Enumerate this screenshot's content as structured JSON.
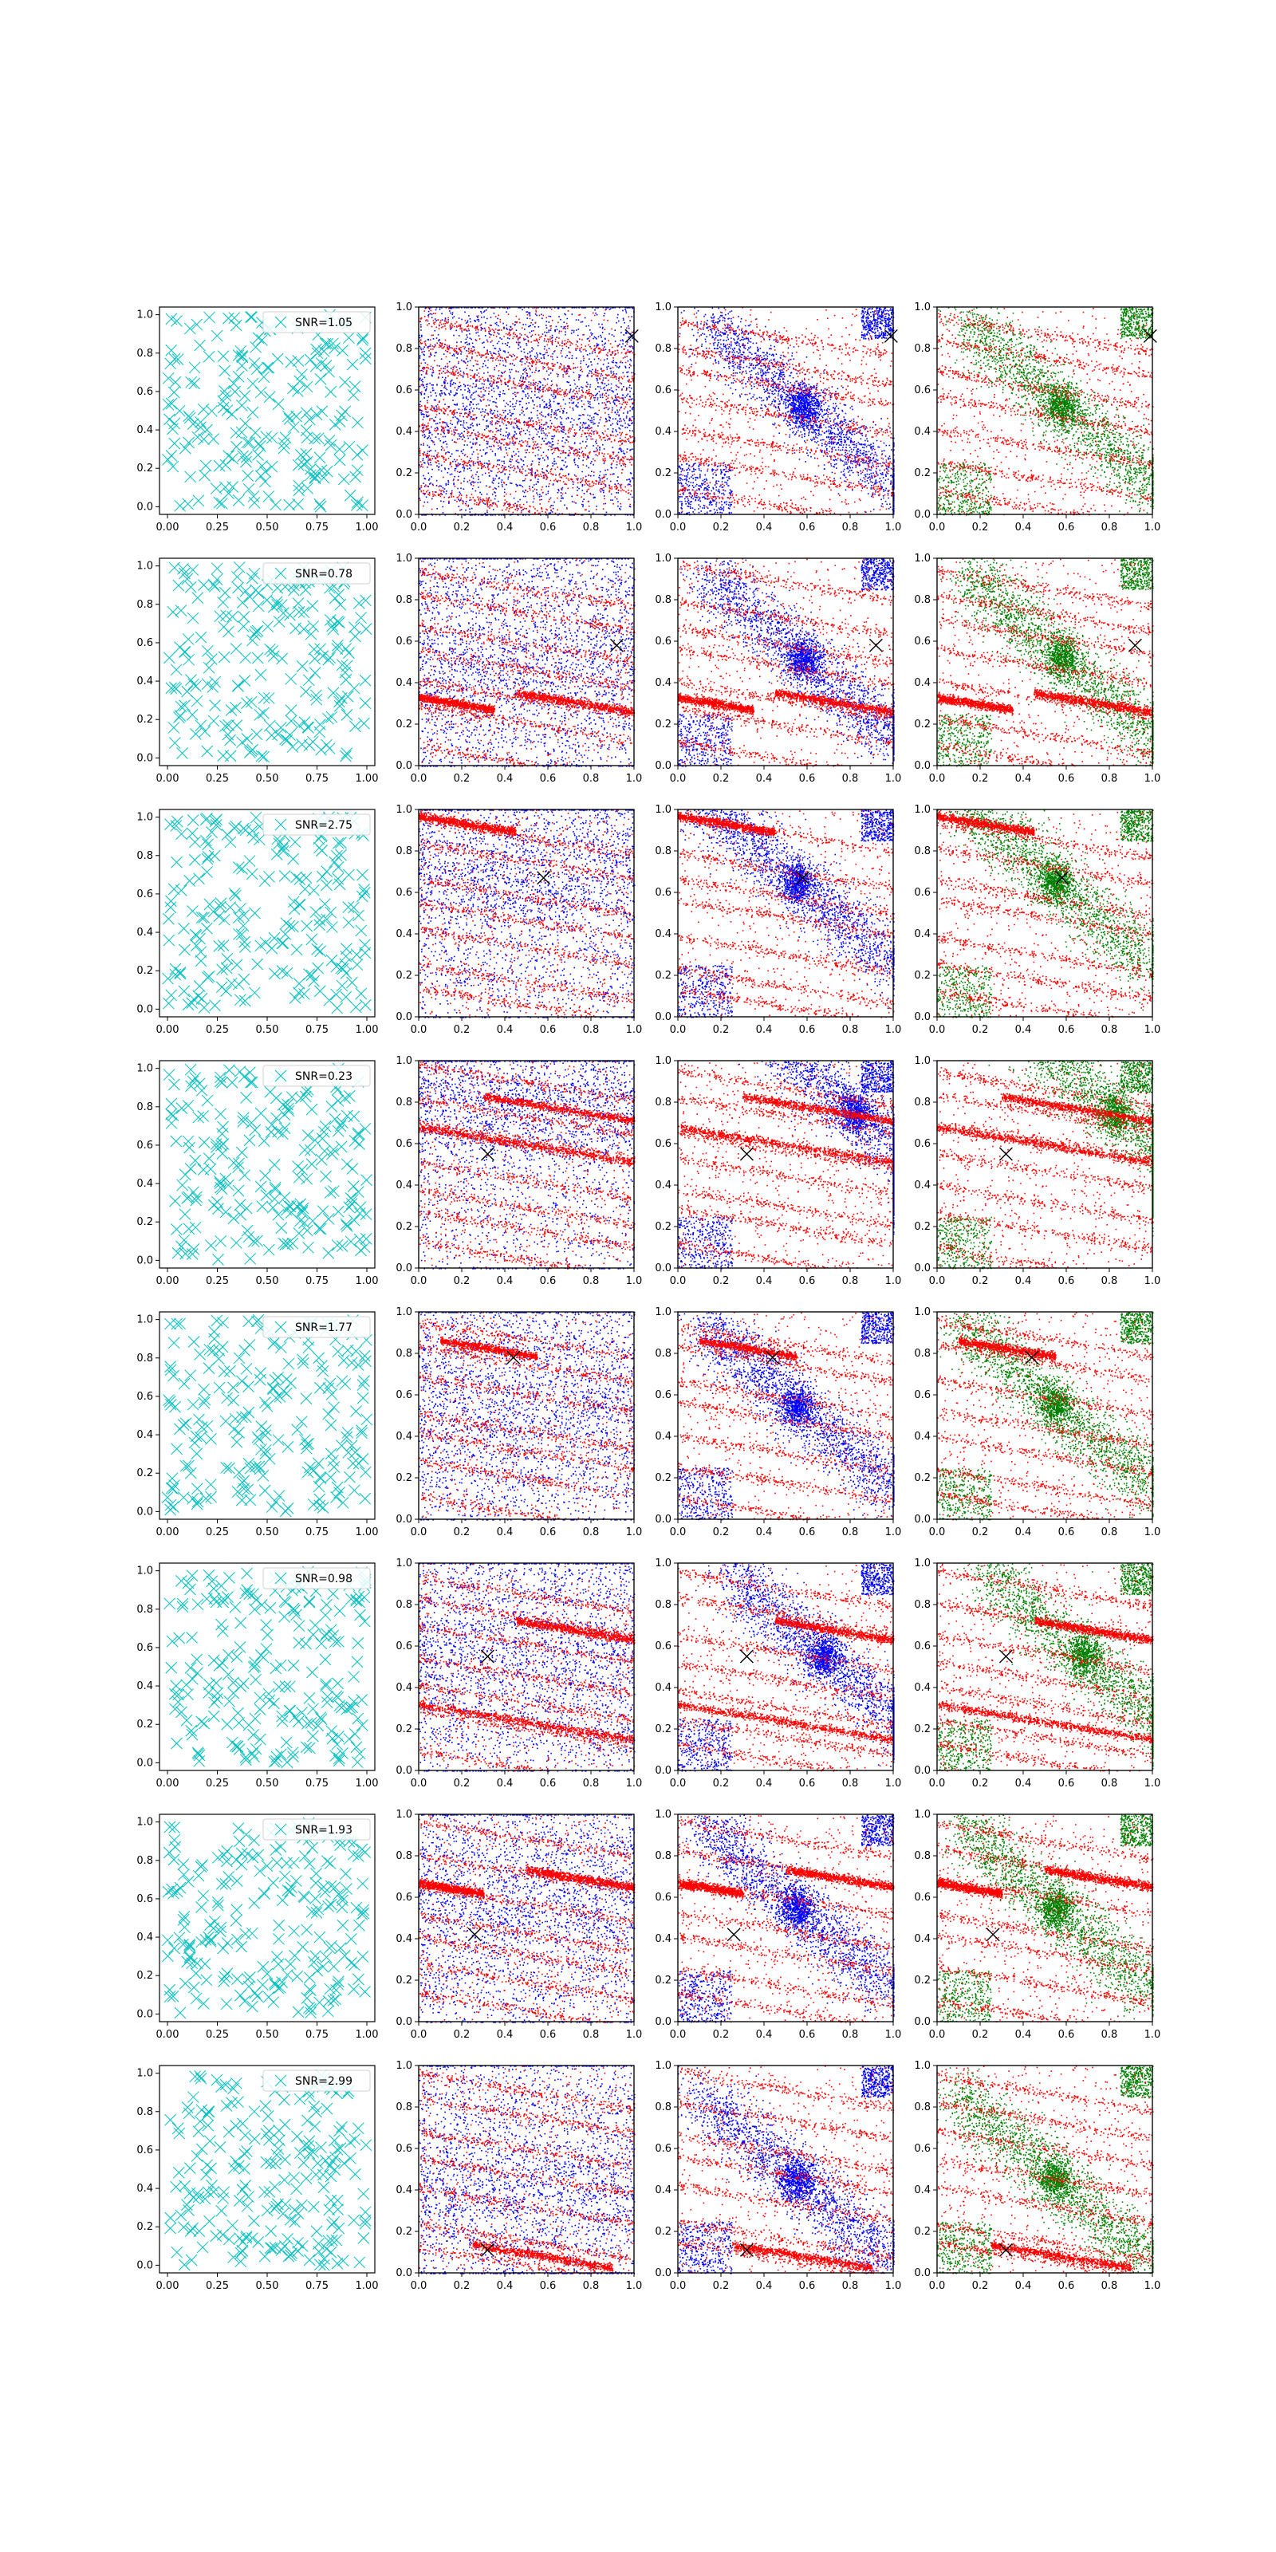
{
  "figure": {
    "rows": 8,
    "cols": 4,
    "colors": {
      "col0_markers": "#00bfbf",
      "red_points": "#ff0000",
      "blue_points": "#0000ff",
      "green_points": "#008000",
      "source_marker": "#000000",
      "axis": "#000000"
    }
  },
  "chart_data": {
    "type": "scatter",
    "xlim": [
      0,
      1
    ],
    "ylim": [
      0,
      1
    ],
    "x_ticks_col0": [
      "0.00",
      "0.25",
      "0.50",
      "0.75",
      "1.00"
    ],
    "x_ticks_other": [
      "0.0",
      "0.2",
      "0.4",
      "0.6",
      "0.8",
      "1.0"
    ],
    "y_ticks": [
      "0.0",
      "0.2",
      "0.4",
      "0.6",
      "0.8",
      "1.0"
    ],
    "legend_location": "upper right",
    "legend_labels": [
      "SNR=1.05",
      "SNR=0.78",
      "SNR=2.75",
      "SNR=0.23",
      "SNR=1.77",
      "SNR=0.98",
      "SNR=1.93",
      "SNR=2.99"
    ],
    "sources": [
      {
        "x": 0.99,
        "y": 0.86
      },
      {
        "x": 0.92,
        "y": 0.58
      },
      {
        "x": 0.58,
        "y": 0.67
      },
      {
        "x": 0.32,
        "y": 0.55
      },
      {
        "x": 0.44,
        "y": 0.78
      },
      {
        "x": 0.32,
        "y": 0.55
      },
      {
        "x": 0.26,
        "y": 0.42
      },
      {
        "x": 0.32,
        "y": 0.11
      }
    ],
    "blobs": [
      {
        "x": 0.58,
        "y": 0.52
      },
      {
        "x": 0.58,
        "y": 0.52
      },
      {
        "x": 0.55,
        "y": 0.65
      },
      {
        "x": 0.82,
        "y": 0.75
      },
      {
        "x": 0.55,
        "y": 0.55
      },
      {
        "x": 0.68,
        "y": 0.55
      },
      {
        "x": 0.55,
        "y": 0.55
      },
      {
        "x": 0.55,
        "y": 0.45
      }
    ],
    "streak_slope": -0.17,
    "dense_streaks": [
      [],
      [
        {
          "y0": 0.43,
          "x0": 0.45,
          "x1": 1.0
        },
        {
          "y0": 0.33,
          "x0": 0.0,
          "x1": 0.35
        }
      ],
      [
        {
          "y0": 0.97,
          "x0": 0.0,
          "x1": 0.45
        }
      ],
      [
        {
          "y0": 0.88,
          "x0": 0.3,
          "x1": 1.0
        },
        {
          "y0": 0.68,
          "x0": 0.0,
          "x1": 1.0
        }
      ],
      [
        {
          "y0": 0.88,
          "x0": 0.1,
          "x1": 0.55
        }
      ],
      [
        {
          "y0": 0.8,
          "x0": 0.45,
          "x1": 1.0
        },
        {
          "y0": 0.32,
          "x0": 0.0,
          "x1": 1.0
        }
      ],
      [
        {
          "y0": 0.67,
          "x0": 0.0,
          "x1": 0.3
        },
        {
          "y0": 0.82,
          "x0": 0.5,
          "x1": 1.0
        }
      ],
      [
        {
          "y0": 0.18,
          "x0": 0.25,
          "x1": 0.9
        }
      ]
    ]
  }
}
